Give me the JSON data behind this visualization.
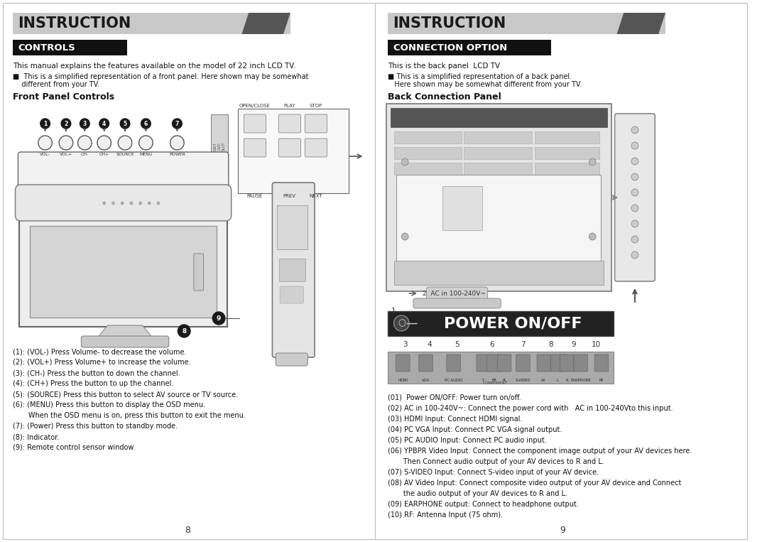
{
  "page_bg": "#ffffff",
  "header_bg": "#c8c8c8",
  "controls_bg": "#111111",
  "title": "INSTRUCTION",
  "left_section": "CONTROLS",
  "right_section": "CONNECTION OPTION",
  "left_desc1": "This manual explains the features available on the model of 22 inch LCD TV.",
  "left_desc2a": "■  This is a simplified representation of a front panel. Here shown may be somewhat",
  "left_desc2b": "    different from your TV.",
  "front_panel_title": "Front Panel Controls",
  "right_desc1": "This is the back panel  LCD TV",
  "right_desc2a": "■ This is a simplified representation of a back panel.",
  "right_desc2b": "   Here shown may be somewhat different from your TV.",
  "back_panel_title": "Back Connection Panel",
  "btn_labels": [
    "VOL-",
    "VOL+",
    "CH-",
    "CH+",
    "SOURCE",
    "MENU",
    "POWER"
  ],
  "left_notes": [
    "(1): (VOL-) Press Volume- to decrease the volume.",
    "(2): (VOL+) Press Volume+ to increase the volume.",
    "(3): (CH-) Press the button to down the channel.",
    "(4): (CH+) Press the button to up the channel.",
    "(5): (SOURCE) Press this button to select AV source or TV source.",
    "(6): (MENU) Press this button to display the OSD menu.",
    "       When the OSD menu is on, press this button to exit the menu.",
    "(7): (Power) Press this button to standby mode.",
    "(8): Indicator.",
    "(9): Remote control sensor window."
  ],
  "right_notes": [
    "(01)  Power ON/OFF: Power turn on/off.",
    "(02) AC in 100-240V~: Connect the power cord with   AC in 100-240Vto this input.",
    "(03) HDMI Input: Connect HDMI signal.",
    "(04) PC VGA Input: Connect PC VGA signal output.",
    "(05) PC AUDIO Input: Connect PC audio input.",
    "(06) YPBPR Video Input: Connect the component image output of your AV devices here.",
    "       Then Connect audio output of your AV devices to R and L.",
    "(07) S-VIDEO Input: Connect S-video input of your AV device.",
    "(08) AV Video Input: Connect composite video output of your AV device and Connect",
    "       the audio output of your AV devices to R and L.",
    "(09) EARPHONE output: Connect to headphone output.",
    "(10) RF: Antenna Input (75 ohm)."
  ],
  "page_num_left": "8",
  "page_num_right": "9"
}
